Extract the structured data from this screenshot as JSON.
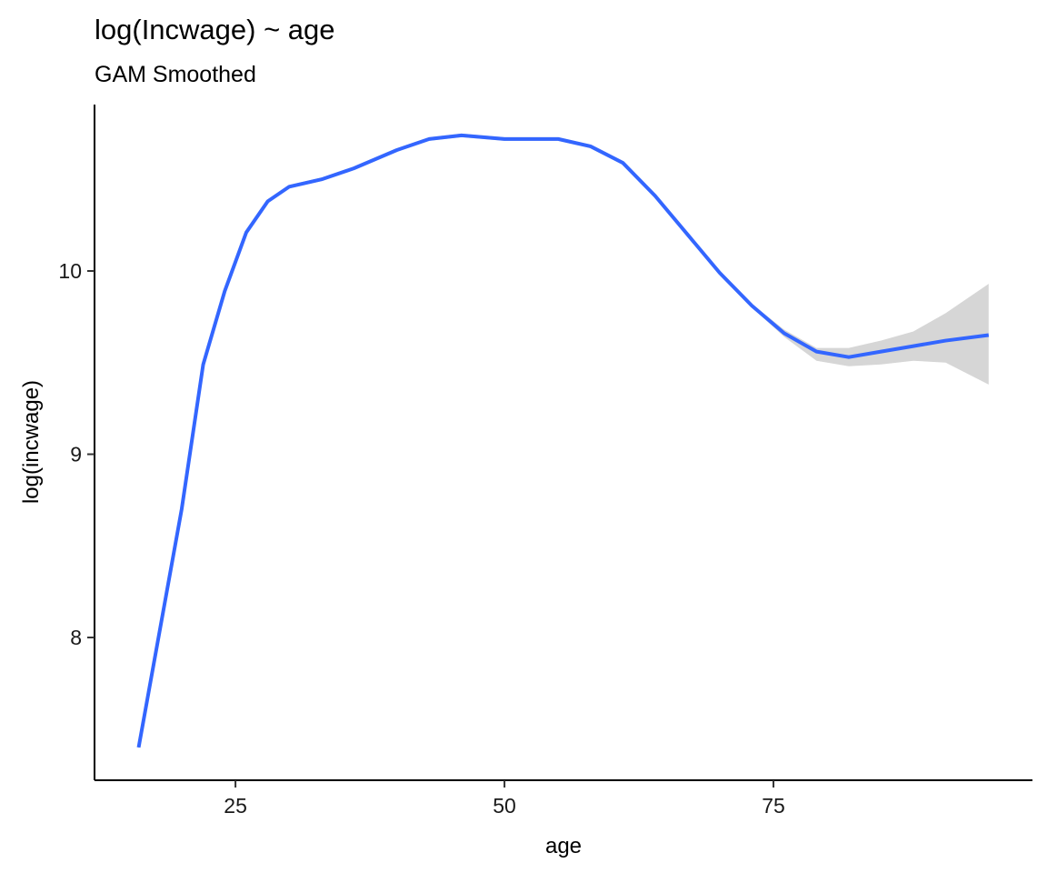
{
  "chart_data": {
    "type": "line",
    "title": "log(Incwage) ~ age",
    "subtitle": "GAM Smoothed",
    "x_label": "age",
    "y_label": "log(incwage)",
    "x": [
      16,
      18,
      20,
      22,
      24,
      26,
      28,
      30,
      33,
      36,
      40,
      43,
      46,
      50,
      55,
      58,
      61,
      64,
      67,
      70,
      73,
      76,
      79,
      82,
      85,
      88,
      91,
      95
    ],
    "series": [
      {
        "color": "#3366ff",
        "values": [
          7.4,
          8.05,
          8.7,
          9.49,
          9.89,
          10.21,
          10.38,
          10.46,
          10.5,
          10.56,
          10.66,
          10.72,
          10.74,
          10.72,
          10.72,
          10.68,
          10.59,
          10.41,
          10.2,
          9.99,
          9.81,
          9.66,
          9.56,
          9.53,
          9.56,
          9.59,
          9.62,
          9.65
        ]
      }
    ],
    "band": {
      "color": "#d6d6d6",
      "upper": [
        7.41,
        8.06,
        8.71,
        9.5,
        9.9,
        10.22,
        10.39,
        10.47,
        10.51,
        10.57,
        10.67,
        10.73,
        10.75,
        10.73,
        10.73,
        10.69,
        10.6,
        10.42,
        10.21,
        10.0,
        9.82,
        9.68,
        9.58,
        9.58,
        9.62,
        9.67,
        9.77,
        9.93
      ],
      "lower": [
        7.39,
        8.04,
        8.69,
        9.48,
        9.88,
        10.2,
        10.37,
        10.45,
        10.49,
        10.55,
        10.65,
        10.71,
        10.73,
        10.71,
        10.71,
        10.67,
        10.58,
        10.4,
        10.19,
        9.98,
        9.8,
        9.64,
        9.51,
        9.48,
        9.49,
        9.51,
        9.5,
        9.38
      ]
    },
    "xlim": [
      11.9,
      99.07
    ],
    "ylim": [
      7.221,
      10.908
    ],
    "xticks": [
      25,
      50,
      75
    ],
    "yticks": [
      8,
      9,
      10
    ],
    "grid": false
  }
}
